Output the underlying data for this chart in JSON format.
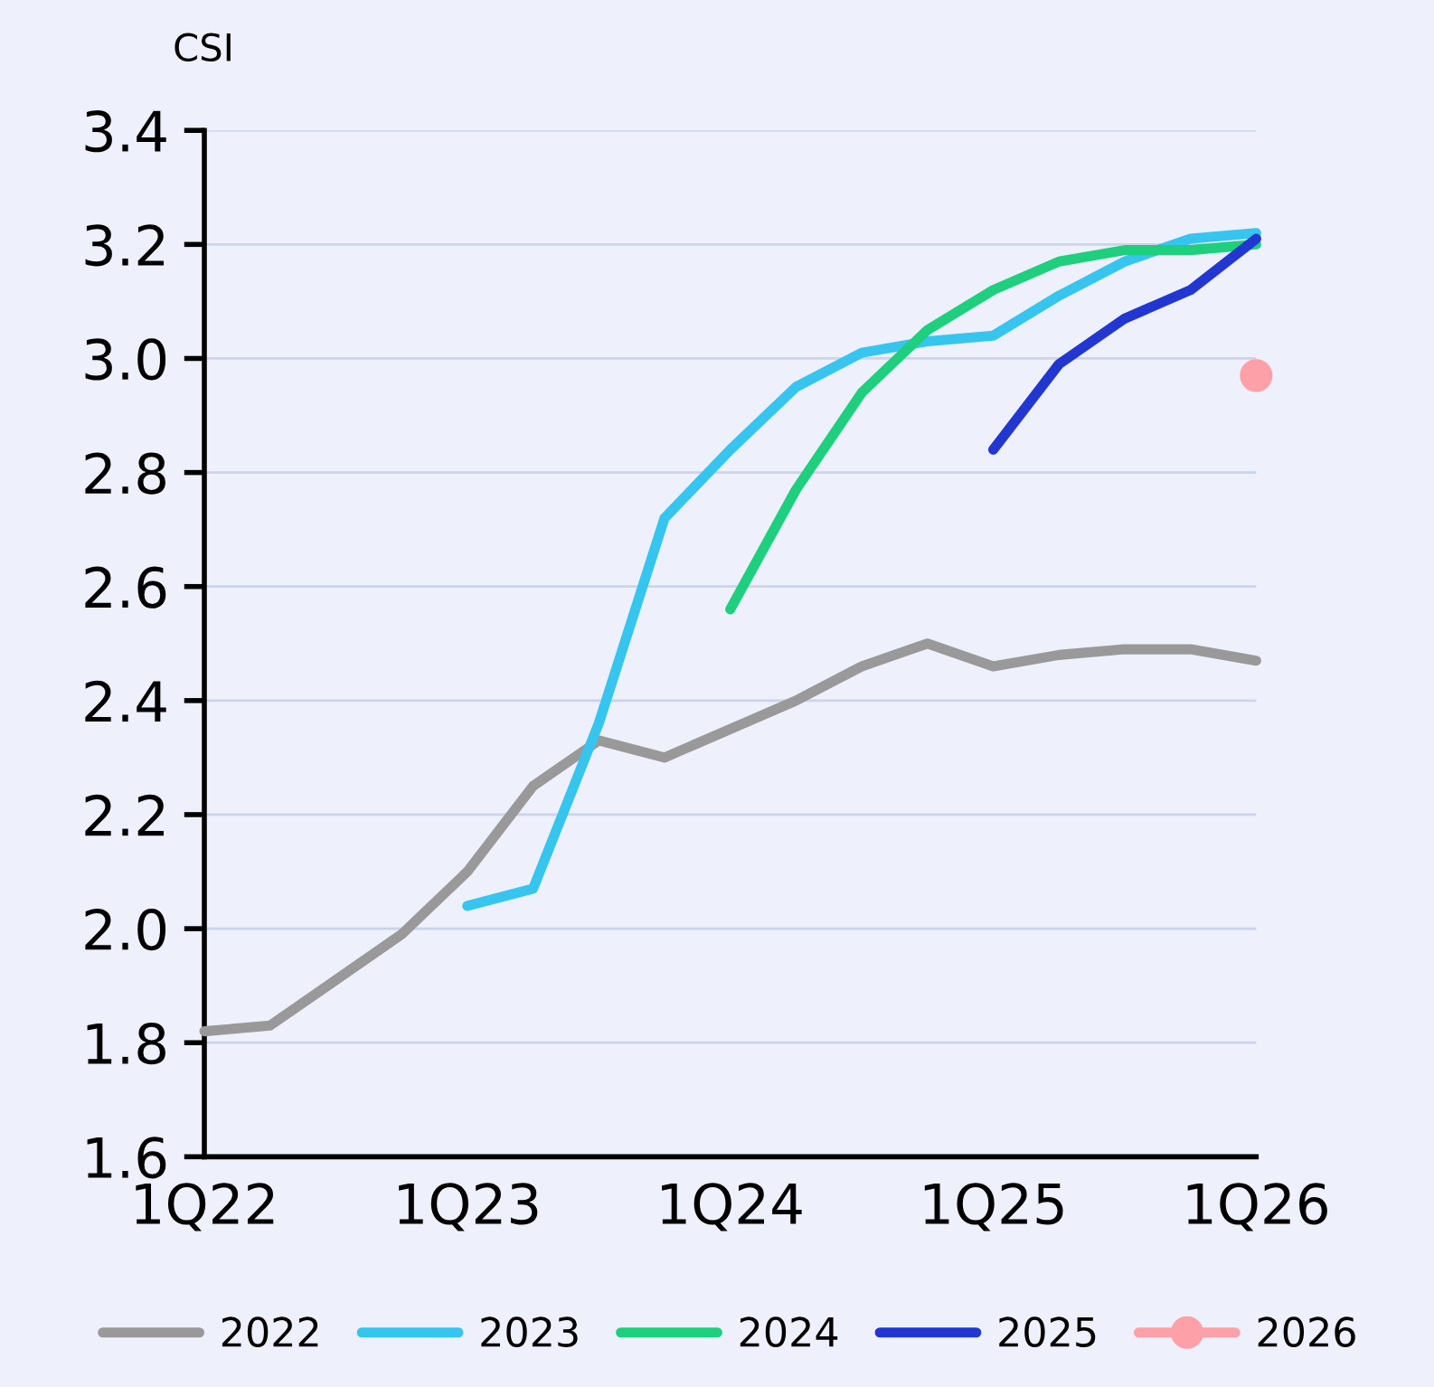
{
  "chart_data": {
    "type": "line",
    "ylabel": "CSI",
    "categories": [
      "1Q22",
      null,
      null,
      null,
      "1Q23",
      null,
      null,
      null,
      "1Q24",
      null,
      null,
      null,
      "1Q25",
      null,
      null,
      null,
      "1Q26"
    ],
    "ylim": [
      1.6,
      3.4
    ],
    "yticks": [
      1.6,
      1.8,
      {
        "value": 2.0,
        "label": "2.0"
      },
      2.2,
      2.4,
      2.6,
      2.8,
      {
        "value": 3.0,
        "label": "3.0"
      },
      3.2,
      3.4
    ],
    "grid": "y",
    "legend": "bottom",
    "line_style": "solid",
    "series": [
      {
        "name": "2022",
        "color": "#999999",
        "marker": "none",
        "values": [
          1.82,
          1.83,
          1.91,
          1.99,
          2.1,
          2.25,
          2.33,
          2.3,
          2.35,
          2.4,
          2.46,
          2.5,
          2.46,
          2.48,
          2.49,
          2.49,
          2.47
        ]
      },
      {
        "name": "2023",
        "color": "#36c5ee",
        "marker": "none",
        "values": [
          null,
          null,
          null,
          null,
          2.04,
          2.07,
          2.36,
          2.72,
          2.84,
          2.95,
          3.01,
          3.03,
          3.04,
          3.11,
          3.17,
          3.21,
          3.22
        ]
      },
      {
        "name": "2024",
        "color": "#1ecf7e",
        "marker": "none",
        "values": [
          null,
          null,
          null,
          null,
          null,
          null,
          null,
          null,
          2.56,
          2.77,
          2.94,
          3.05,
          3.12,
          3.17,
          3.19,
          3.19,
          3.2
        ]
      },
      {
        "name": "2025",
        "color": "#2237d1",
        "marker": "none",
        "values": [
          null,
          null,
          null,
          null,
          null,
          null,
          null,
          null,
          null,
          null,
          null,
          null,
          2.84,
          2.99,
          3.07,
          3.12,
          3.21
        ]
      },
      {
        "name": "2026",
        "color": "#fda0a8",
        "marker": "circle",
        "values": [
          null,
          null,
          null,
          null,
          null,
          null,
          null,
          null,
          null,
          null,
          null,
          null,
          null,
          null,
          null,
          null,
          2.97
        ]
      }
    ]
  }
}
